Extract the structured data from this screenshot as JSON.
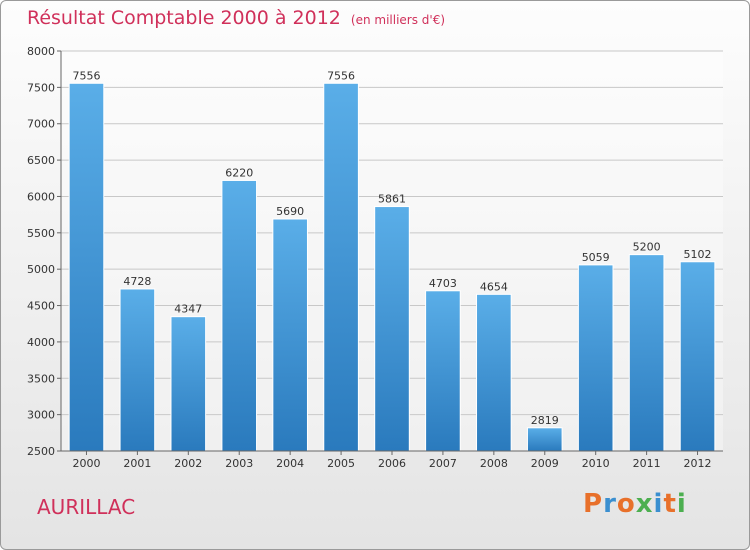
{
  "header": {
    "title": "Résultat Comptable 2000 à 2012",
    "subtitle": "(en milliers d'€)"
  },
  "footer": {
    "city": "AURILLAC",
    "logo": "Proxiti"
  },
  "colors": {
    "title": "#d0305a",
    "bar_top": "#5aaee8",
    "bar_bottom": "#2a7abd",
    "logo_letters": [
      "#e8702a",
      "#3a8fd0",
      "#e8702a",
      "#4caf50",
      "#3a8fd0",
      "#e8702a",
      "#4caf50"
    ]
  },
  "chart_data": {
    "type": "bar",
    "title": "Résultat Comptable 2000 à 2012",
    "subtitle": "(en milliers d'€)",
    "xlabel": "",
    "ylabel": "",
    "categories": [
      "2000",
      "2001",
      "2002",
      "2003",
      "2004",
      "2005",
      "2006",
      "2007",
      "2008",
      "2009",
      "2010",
      "2011",
      "2012"
    ],
    "values": [
      7556,
      4728,
      4347,
      6220,
      5690,
      7556,
      5861,
      4703,
      4654,
      2819,
      5059,
      5200,
      5102
    ],
    "ylim": [
      2500,
      8000
    ],
    "yticks": [
      2500,
      3000,
      3500,
      4000,
      4500,
      5000,
      5500,
      6000,
      6500,
      7000,
      7500,
      8000
    ],
    "grid": true,
    "data_labels": true
  }
}
